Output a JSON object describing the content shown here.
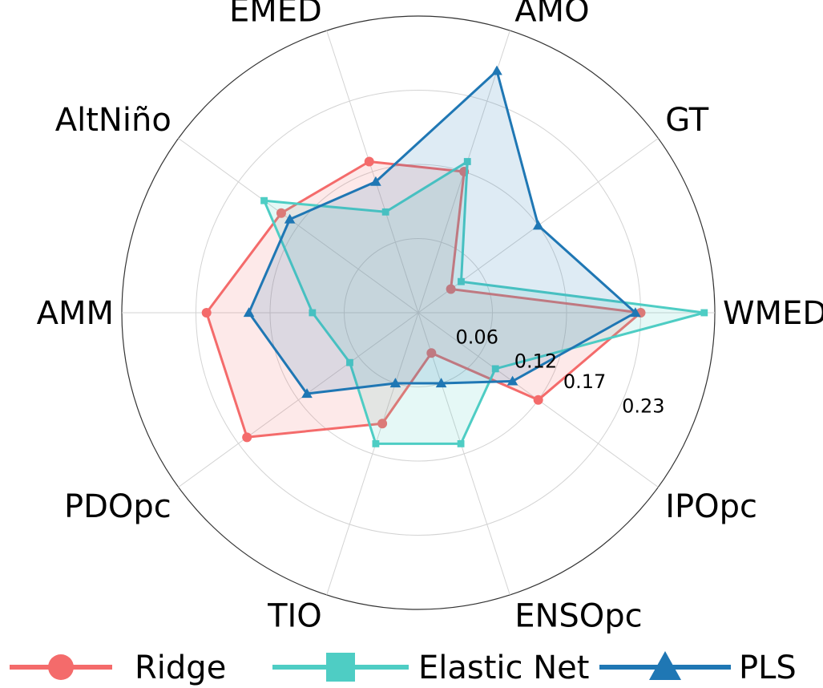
{
  "chart_data": {
    "type": "radar",
    "axes": [
      "WMED",
      "GT",
      "AMO",
      "EMED",
      "AltNiño",
      "AMM",
      "PDOpc",
      "TIO",
      "ENSOpc",
      "IPOpc"
    ],
    "radial_ticks": [
      "0.06",
      "0.12",
      "0.17",
      "0.23"
    ],
    "rlim": [
      0,
      0.28
    ],
    "grid": true,
    "legend_position": "bottom",
    "series": [
      {
        "name": "Ridge",
        "color": "#f46b6b",
        "marker": "circle",
        "values": [
          0.21,
          0.038,
          0.14,
          0.15,
          0.16,
          0.2,
          0.2,
          0.11,
          0.04,
          0.14
        ]
      },
      {
        "name": "Elastic Net",
        "color": "#4ecdc4",
        "marker": "square",
        "values": [
          0.27,
          0.05,
          0.15,
          0.1,
          0.18,
          0.1,
          0.08,
          0.13,
          0.13,
          0.09
        ]
      },
      {
        "name": "PLS",
        "color": "#1f77b4",
        "marker": "triangle",
        "values": [
          0.205,
          0.14,
          0.24,
          0.13,
          0.15,
          0.16,
          0.13,
          0.07,
          0.07,
          0.11
        ]
      }
    ]
  }
}
